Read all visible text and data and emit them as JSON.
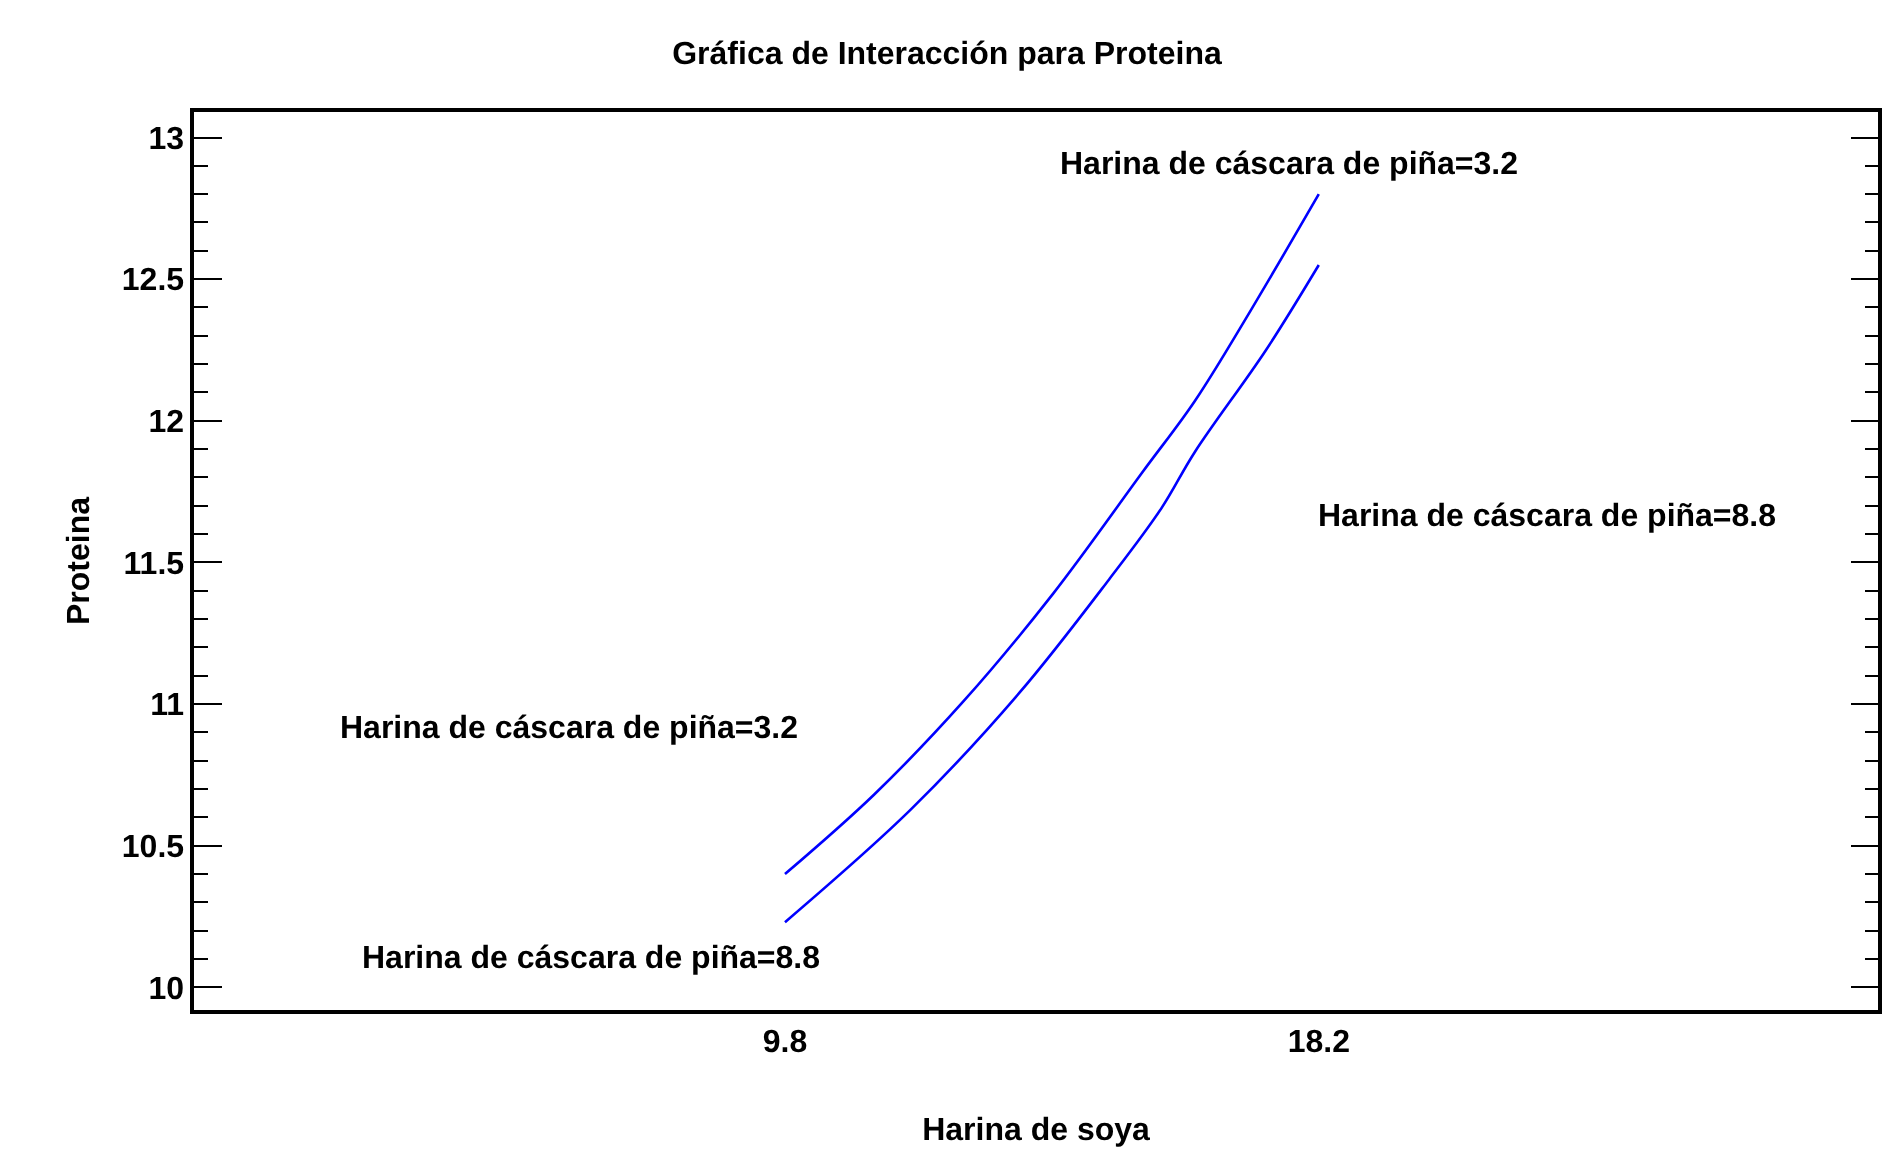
{
  "chart_data": {
    "type": "line",
    "title": "Gráfica de Interacción para Proteina",
    "xlabel": "Harina de soya",
    "ylabel": "Proteina",
    "series": [
      {
        "color": "#0000ff",
        "x": [
          9.8,
          11.2,
          12.61,
          14.02,
          15.43,
          16.25,
          17.13,
          18.2
        ],
        "values": [
          10.4,
          10.68,
          11.01,
          11.39,
          11.82,
          12.07,
          12.39,
          12.8
        ]
      },
      {
        "color": "#0000ff",
        "x": [
          9.8,
          11.79,
          13.49,
          14.9,
          15.72,
          16.25,
          17.37,
          18.2
        ],
        "values": [
          10.23,
          10.63,
          11.04,
          11.44,
          11.69,
          11.89,
          12.25,
          12.55
        ]
      }
    ],
    "annotations": [
      {
        "text": "Harina de cáscara de piña=3.2",
        "x": 18.2,
        "y": 12.8
      },
      "Harina de cáscara de piña=8.8",
      "Harina de cáscara de piña=3.2",
      {
        "text": "Harina de cáscara de piña=8.8",
        "x": 9.8,
        "y": 10.23
      }
    ],
    "xlim": [
      0.5,
      27.0
    ],
    "xticks": [
      9.8,
      18.2
    ],
    "ylim": [
      9.92,
      13.09
    ],
    "yticks": [
      10,
      10.5,
      11,
      11.5,
      12,
      12.5,
      13
    ],
    "marker": "none",
    "line_style": "solid"
  }
}
